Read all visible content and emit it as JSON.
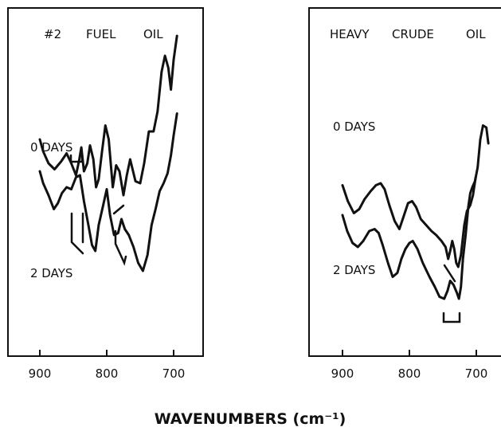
{
  "chart_data": [
    {
      "type": "line",
      "title_words": [
        "#2",
        "FUEL",
        "OIL"
      ],
      "xlim": [
        930,
        680
      ],
      "xticks": [
        900,
        800,
        700
      ],
      "xlabel": "",
      "ylabel": "",
      "grid": false,
      "series": [
        {
          "name": "0 DAYS",
          "points": [
            [
              900,
              0.62
            ],
            [
              895,
              0.68
            ],
            [
              887,
              0.74
            ],
            [
              878,
              0.77
            ],
            [
              868,
              0.73
            ],
            [
              860,
              0.69
            ],
            [
              853,
              0.74
            ],
            [
              846,
              0.8
            ],
            [
              841,
              0.72
            ],
            [
              838,
              0.66
            ],
            [
              834,
              0.78
            ],
            [
              829,
              0.74
            ],
            [
              825,
              0.65
            ],
            [
              820,
              0.72
            ],
            [
              816,
              0.86
            ],
            [
              812,
              0.82
            ],
            [
              807,
              0.68
            ],
            [
              802,
              0.55
            ],
            [
              797,
              0.62
            ],
            [
              791,
              0.86
            ],
            [
              786,
              0.75
            ],
            [
              781,
              0.78
            ],
            [
              775,
              0.9
            ],
            [
              770,
              0.8
            ],
            [
              765,
              0.72
            ],
            [
              757,
              0.83
            ],
            [
              750,
              0.84
            ],
            [
              744,
              0.74
            ],
            [
              737,
              0.58
            ],
            [
              730,
              0.58
            ],
            [
              724,
              0.48
            ],
            [
              718,
              0.28
            ],
            [
              713,
              0.2
            ],
            [
              708,
              0.26
            ],
            [
              704,
              0.37
            ],
            [
              700,
              0.22
            ],
            [
              695,
              0.1
            ]
          ]
        },
        {
          "name": "2 DAYS",
          "points": [
            [
              900,
              0.78
            ],
            [
              895,
              0.84
            ],
            [
              887,
              0.9
            ],
            [
              879,
              0.97
            ],
            [
              873,
              0.94
            ],
            [
              867,
              0.89
            ],
            [
              860,
              0.86
            ],
            [
              853,
              0.87
            ],
            [
              846,
              0.81
            ],
            [
              840,
              0.8
            ],
            [
              834,
              0.93
            ],
            [
              828,
              1.04
            ],
            [
              822,
              1.15
            ],
            [
              817,
              1.18
            ],
            [
              812,
              1.05
            ],
            [
              806,
              0.96
            ],
            [
              800,
              0.87
            ],
            [
              795,
              1.0
            ],
            [
              789,
              1.1
            ],
            [
              783,
              1.09
            ],
            [
              778,
              1.02
            ],
            [
              773,
              1.07
            ],
            [
              767,
              1.1
            ],
            [
              760,
              1.16
            ],
            [
              753,
              1.24
            ],
            [
              746,
              1.28
            ],
            [
              739,
              1.2
            ],
            [
              733,
              1.05
            ],
            [
              727,
              0.97
            ],
            [
              721,
              0.88
            ],
            [
              715,
              0.84
            ],
            [
              709,
              0.79
            ],
            [
              704,
              0.7
            ],
            [
              700,
              0.6
            ],
            [
              695,
              0.49
            ]
          ]
        }
      ],
      "annotations": [
        {
          "text": "0 DAYS"
        },
        {
          "text": "2 DAYS"
        }
      ]
    },
    {
      "type": "line",
      "title_words": [
        "HEAVY",
        "CRUDE",
        "OIL"
      ],
      "xlim": [
        930,
        680
      ],
      "xticks": [
        900,
        800,
        700
      ],
      "xlabel": "",
      "ylabel": "",
      "grid": false,
      "series": [
        {
          "name": "0 DAYS",
          "points": [
            [
              900,
              0.85
            ],
            [
              892,
              0.93
            ],
            [
              883,
              0.99
            ],
            [
              875,
              0.97
            ],
            [
              867,
              0.92
            ],
            [
              858,
              0.88
            ],
            [
              850,
              0.85
            ],
            [
              843,
              0.84
            ],
            [
              837,
              0.87
            ],
            [
              830,
              0.95
            ],
            [
              822,
              1.03
            ],
            [
              815,
              1.07
            ],
            [
              808,
              1.0
            ],
            [
              802,
              0.94
            ],
            [
              796,
              0.93
            ],
            [
              790,
              0.96
            ],
            [
              783,
              1.02
            ],
            [
              775,
              1.05
            ],
            [
              767,
              1.08
            ],
            [
              760,
              1.1
            ],
            [
              752,
              1.13
            ],
            [
              746,
              1.16
            ],
            [
              742,
              1.22
            ],
            [
              739,
              1.18
            ],
            [
              736,
              1.13
            ],
            [
              733,
              1.17
            ],
            [
              730,
              1.24
            ],
            [
              727,
              1.26
            ],
            [
              723,
              1.2
            ],
            [
              718,
              1.05
            ],
            [
              714,
              0.98
            ],
            [
              709,
              0.95
            ],
            [
              705,
              0.9
            ],
            [
              701,
              0.81
            ]
          ]
        },
        {
          "name": "2 DAYS",
          "points": [
            [
              900,
              1.0
            ],
            [
              893,
              1.08
            ],
            [
              885,
              1.14
            ],
            [
              877,
              1.16
            ],
            [
              869,
              1.13
            ],
            [
              860,
              1.08
            ],
            [
              852,
              1.07
            ],
            [
              846,
              1.09
            ],
            [
              840,
              1.15
            ],
            [
              832,
              1.24
            ],
            [
              825,
              1.31
            ],
            [
              818,
              1.29
            ],
            [
              812,
              1.22
            ],
            [
              806,
              1.17
            ],
            [
              800,
              1.14
            ],
            [
              795,
              1.13
            ],
            [
              788,
              1.17
            ],
            [
              780,
              1.24
            ],
            [
              770,
              1.31
            ],
            [
              762,
              1.36
            ],
            [
              755,
              1.41
            ],
            [
              748,
              1.42
            ],
            [
              743,
              1.38
            ],
            [
              739,
              1.33
            ],
            [
              734,
              1.35
            ],
            [
              729,
              1.39
            ],
            [
              726,
              1.42
            ],
            [
              723,
              1.36
            ],
            [
              720,
              1.22
            ],
            [
              716,
              1.1
            ],
            [
              712,
              0.96
            ],
            [
              709,
              0.89
            ],
            [
              706,
              0.86
            ],
            [
              702,
              0.83
            ],
            [
              698,
              0.76
            ],
            [
              694,
              0.62
            ],
            [
              690,
              0.55
            ],
            [
              685,
              0.56
            ],
            [
              682,
              0.64
            ]
          ]
        }
      ],
      "annotations": [
        {
          "text": "0 DAYS"
        },
        {
          "text": "2 DAYS"
        }
      ]
    }
  ],
  "shared_xlabel": "WAVENUMBERS (cm⁻¹)"
}
